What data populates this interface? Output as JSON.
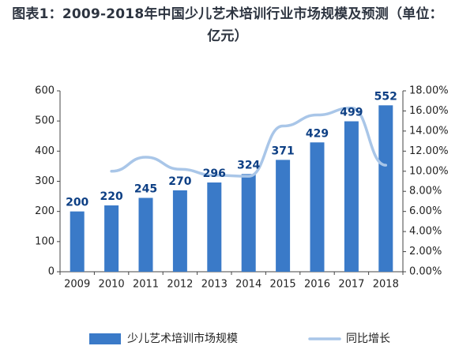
{
  "chart_data": {
    "type": "bar",
    "title": "图表1：2009-2018年中国少儿艺术培训行业市场规模及预测（单位：亿元）",
    "categories": [
      "2009",
      "2010",
      "2011",
      "2012",
      "2013",
      "2014",
      "2015",
      "2016",
      "2017",
      "2018"
    ],
    "series": [
      {
        "name": "少儿艺术培训市场规模",
        "type": "bar",
        "axis": "left",
        "color": "#3a7ac8",
        "values": [
          200,
          220,
          245,
          270,
          296,
          324,
          371,
          429,
          499,
          552
        ]
      },
      {
        "name": "同比增长",
        "type": "line",
        "axis": "right",
        "color": "#a9c6e8",
        "values": [
          null,
          10.0,
          11.4,
          10.2,
          9.6,
          9.5,
          14.5,
          15.6,
          16.3,
          10.6
        ]
      }
    ],
    "y_left": {
      "min": 0,
      "max": 600,
      "ticks": [
        0,
        100,
        200,
        300,
        400,
        500,
        600
      ]
    },
    "y_right": {
      "min": 0,
      "max": 18,
      "ticks": [
        "0.00%",
        "2.00%",
        "4.00%",
        "6.00%",
        "8.00%",
        "10.00%",
        "12.00%",
        "14.00%",
        "16.00%",
        "18.00%"
      ]
    },
    "grid": false,
    "legend_position": "bottom"
  }
}
